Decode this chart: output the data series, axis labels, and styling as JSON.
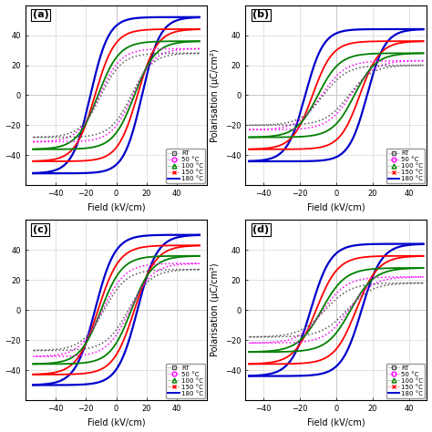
{
  "panels": [
    "(a)",
    "(b)",
    "(c)",
    "(d)"
  ],
  "xlim_ac": [
    -60,
    60
  ],
  "xlim_bd": [
    -50,
    50
  ],
  "ylim": [
    -60,
    60
  ],
  "xticks_ac": [
    -40,
    -20,
    0,
    20,
    40
  ],
  "xticks_bd": [
    -40,
    -20,
    0,
    20,
    40
  ],
  "yticks": [
    -40,
    -20,
    0,
    20,
    40
  ],
  "xlabel": "Field (kV/cm)",
  "ylabel": "Polarisation (μC/cm²)",
  "legend_labels": [
    "RT",
    "50 °C",
    "100 °C",
    "150 °C",
    "180 °C"
  ],
  "legend_colors": [
    "#555555",
    "#ff00ff",
    "#008000",
    "#ff0000",
    "#0000cc"
  ],
  "legend_markers": [
    "s",
    "o",
    "^",
    "x",
    null
  ],
  "panel_params": [
    {
      "name": "(a)",
      "E_drive": 55,
      "loops": [
        {
          "color": "#0000cc",
          "lw": 1.6,
          "Pmax": 52,
          "Ec": 17,
          "k": 12,
          "style": "solid"
        },
        {
          "color": "#ff0000",
          "lw": 1.3,
          "Pmax": 44,
          "Ec": 14,
          "k": 13,
          "style": "solid"
        },
        {
          "color": "#008000",
          "lw": 1.3,
          "Pmax": 36,
          "Ec": 12,
          "k": 14,
          "style": "solid"
        },
        {
          "color": "#ff00ff",
          "lw": 1.1,
          "Pmax": 31,
          "Ec": 11,
          "k": 14,
          "style": "dotted"
        },
        {
          "color": "#555555",
          "lw": 1.1,
          "Pmax": 28,
          "Ec": 10,
          "k": 14,
          "style": "dotted"
        }
      ]
    },
    {
      "name": "(b)",
      "E_drive": 48,
      "loops": [
        {
          "color": "#0000cc",
          "lw": 1.6,
          "Pmax": 44,
          "Ec": 17,
          "k": 10,
          "style": "solid"
        },
        {
          "color": "#ff0000",
          "lw": 1.3,
          "Pmax": 36,
          "Ec": 13,
          "k": 11,
          "style": "solid"
        },
        {
          "color": "#008000",
          "lw": 1.3,
          "Pmax": 28,
          "Ec": 10,
          "k": 12,
          "style": "solid"
        },
        {
          "color": "#ff00ff",
          "lw": 1.1,
          "Pmax": 23,
          "Ec": 8,
          "k": 13,
          "style": "dotted"
        },
        {
          "color": "#555555",
          "lw": 1.1,
          "Pmax": 20,
          "Ec": 7,
          "k": 13,
          "style": "dotted"
        }
      ]
    },
    {
      "name": "(c)",
      "E_drive": 55,
      "loops": [
        {
          "color": "#0000cc",
          "lw": 1.6,
          "Pmax": 50,
          "Ec": 14,
          "k": 13,
          "style": "solid"
        },
        {
          "color": "#ff0000",
          "lw": 1.3,
          "Pmax": 43,
          "Ec": 12,
          "k": 14,
          "style": "solid"
        },
        {
          "color": "#008000",
          "lw": 1.3,
          "Pmax": 36,
          "Ec": 10,
          "k": 14,
          "style": "solid"
        },
        {
          "color": "#ff00ff",
          "lw": 1.1,
          "Pmax": 31,
          "Ec": 9,
          "k": 15,
          "style": "dotted"
        },
        {
          "color": "#555555",
          "lw": 1.1,
          "Pmax": 27,
          "Ec": 8,
          "k": 15,
          "style": "dotted"
        }
      ]
    },
    {
      "name": "(d)",
      "E_drive": 48,
      "loops": [
        {
          "color": "#0000cc",
          "lw": 1.6,
          "Pmax": 44,
          "Ec": 14,
          "k": 11,
          "style": "solid"
        },
        {
          "color": "#ff0000",
          "lw": 1.3,
          "Pmax": 36,
          "Ec": 11,
          "k": 12,
          "style": "solid"
        },
        {
          "color": "#008000",
          "lw": 1.3,
          "Pmax": 28,
          "Ec": 8,
          "k": 13,
          "style": "solid"
        },
        {
          "color": "#ff00ff",
          "lw": 1.1,
          "Pmax": 22,
          "Ec": 7,
          "k": 13,
          "style": "dotted"
        },
        {
          "color": "#555555",
          "lw": 1.1,
          "Pmax": 18,
          "Ec": 6,
          "k": 14,
          "style": "dotted"
        }
      ]
    }
  ]
}
